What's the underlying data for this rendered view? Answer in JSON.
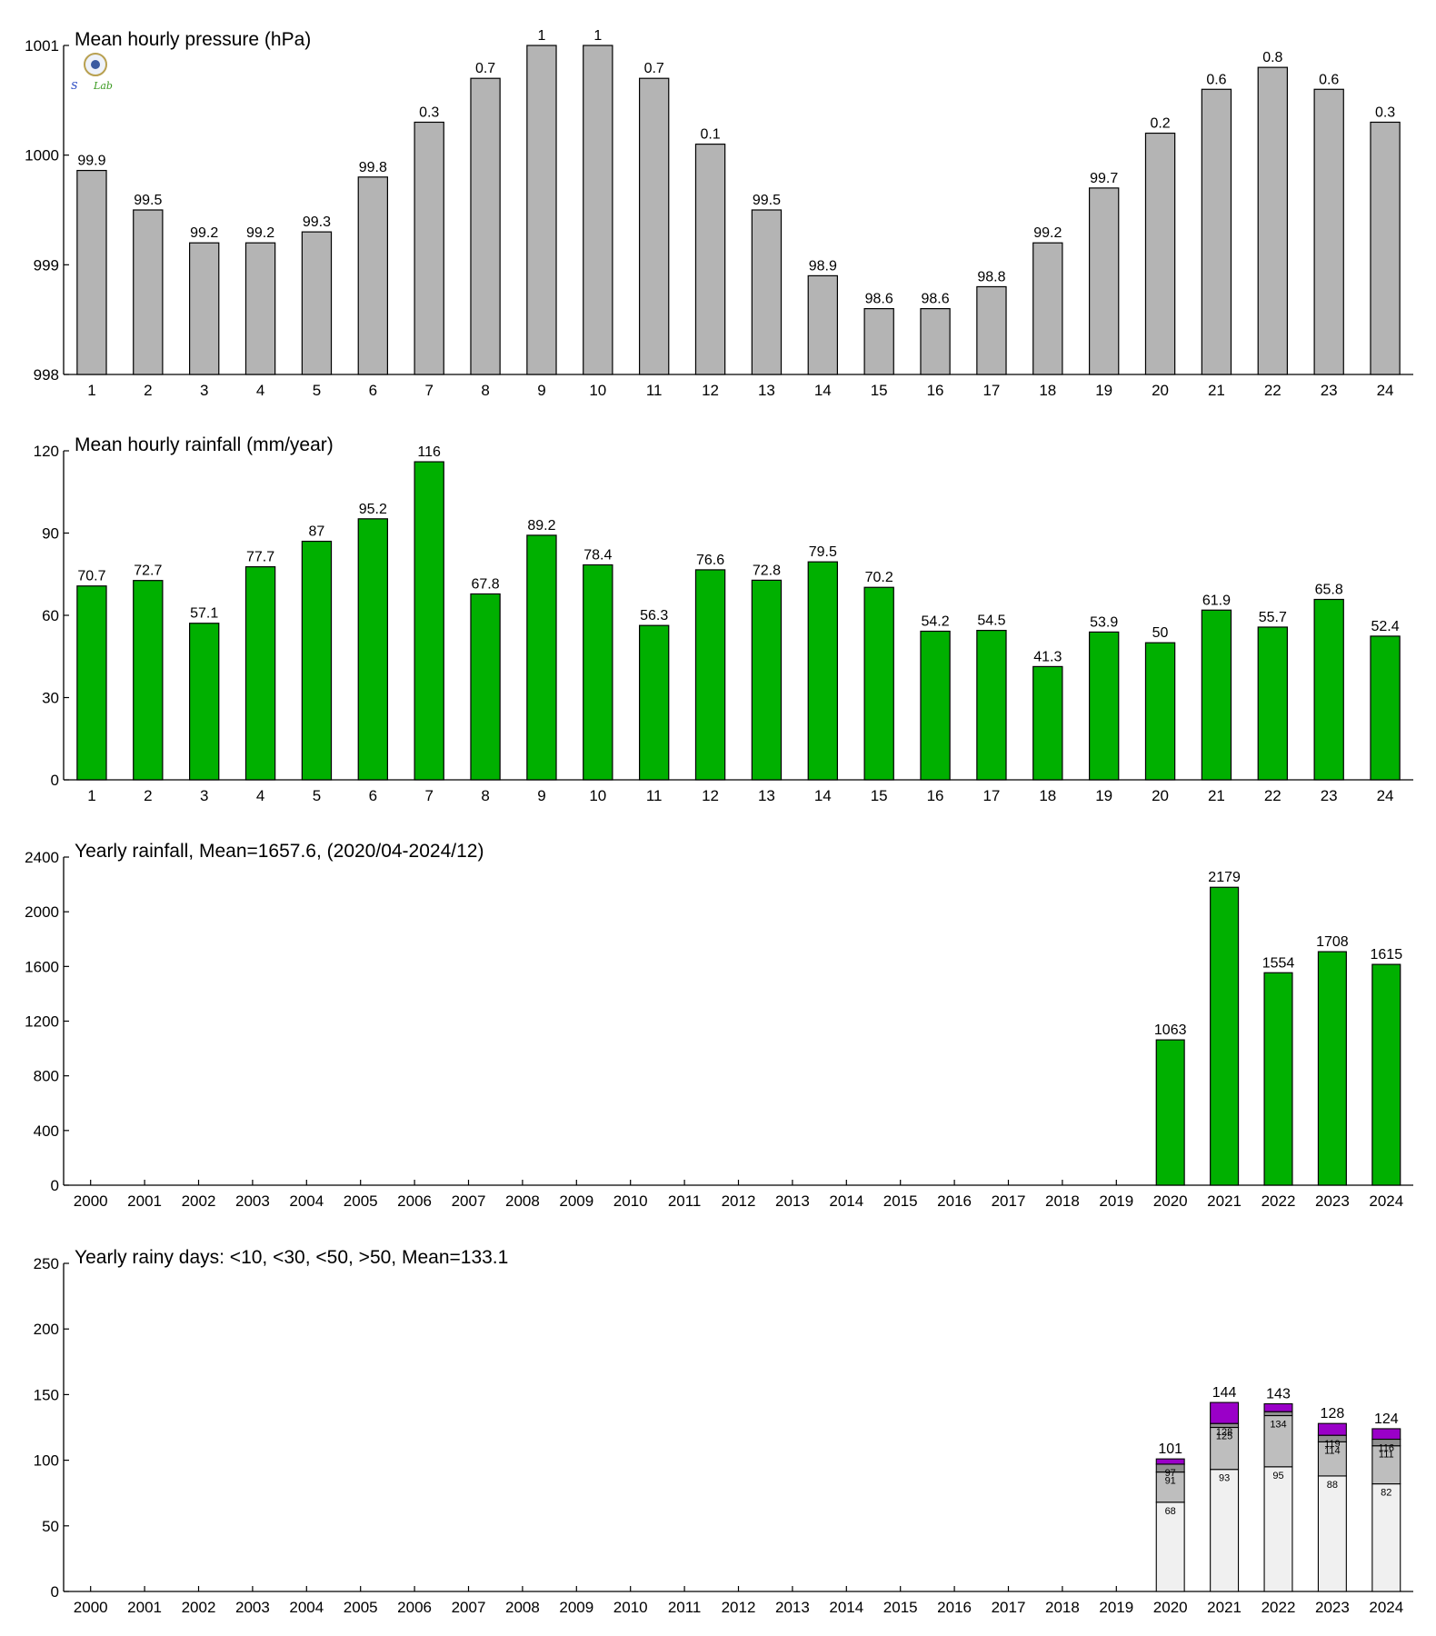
{
  "logo": {
    "text_a": "S",
    "text_b": "Lab"
  },
  "chart_data": [
    {
      "type": "bar",
      "title": "Mean hourly pressure (hPa)",
      "categories": [
        "1",
        "2",
        "3",
        "4",
        "5",
        "6",
        "7",
        "8",
        "9",
        "10",
        "11",
        "12",
        "13",
        "14",
        "15",
        "16",
        "17",
        "18",
        "19",
        "20",
        "21",
        "22",
        "23",
        "24"
      ],
      "values": [
        999.86,
        999.5,
        999.2,
        999.2,
        999.3,
        999.8,
        1000.3,
        1000.7,
        1001.0,
        1001.0,
        1000.7,
        1000.1,
        999.5,
        998.9,
        998.6,
        998.6,
        998.8,
        999.2,
        999.7,
        1000.2,
        1000.6,
        1000.8,
        1000.6,
        1000.3
      ],
      "data_labels": [
        "99.9",
        "99.5",
        "99.2",
        "99.2",
        "99.3",
        "99.8",
        "0.3",
        "0.7",
        "1",
        "1",
        "0.7",
        "0.1",
        "99.5",
        "98.9",
        "98.6",
        "98.6",
        "98.8",
        "99.2",
        "99.7",
        "0.2",
        "0.6",
        "0.8",
        "0.6",
        "0.3"
      ],
      "ylim": [
        998,
        1001
      ],
      "yticks": [
        998,
        999,
        1000,
        1001
      ],
      "color": "#b4b4b4"
    },
    {
      "type": "bar",
      "title": "Mean hourly rainfall (mm/year)",
      "categories": [
        "1",
        "2",
        "3",
        "4",
        "5",
        "6",
        "7",
        "8",
        "9",
        "10",
        "11",
        "12",
        "13",
        "14",
        "15",
        "16",
        "17",
        "18",
        "19",
        "20",
        "21",
        "22",
        "23",
        "24"
      ],
      "values": [
        70.7,
        72.7,
        57.1,
        77.7,
        87,
        95.2,
        116,
        67.8,
        89.2,
        78.4,
        56.3,
        76.6,
        72.8,
        79.5,
        70.2,
        54.2,
        54.5,
        41.3,
        53.9,
        50,
        61.9,
        55.7,
        65.8,
        52.4
      ],
      "data_labels": [
        "70.7",
        "72.7",
        "57.1",
        "77.7",
        "87",
        "95.2",
        "116",
        "67.8",
        "89.2",
        "78.4",
        "56.3",
        "76.6",
        "72.8",
        "79.5",
        "70.2",
        "54.2",
        "54.5",
        "41.3",
        "53.9",
        "50",
        "61.9",
        "55.7",
        "65.8",
        "52.4"
      ],
      "ylim": [
        0,
        120
      ],
      "yticks": [
        0,
        30,
        60,
        90,
        120
      ],
      "color": "#00b000"
    },
    {
      "type": "bar",
      "title": "Yearly rainfall, Mean=1657.6, (2020/04-2024/12)",
      "categories": [
        "2000",
        "2001",
        "2002",
        "2003",
        "2004",
        "2005",
        "2006",
        "2007",
        "2008",
        "2009",
        "2010",
        "2011",
        "2012",
        "2013",
        "2014",
        "2015",
        "2016",
        "2017",
        "2018",
        "2019",
        "2020",
        "2021",
        "2022",
        "2023",
        "2024"
      ],
      "values": [
        null,
        null,
        null,
        null,
        null,
        null,
        null,
        null,
        null,
        null,
        null,
        null,
        null,
        null,
        null,
        null,
        null,
        null,
        null,
        null,
        1063,
        2179,
        1554,
        1708,
        1615
      ],
      "data_labels": [
        "",
        "",
        "",
        "",
        "",
        "",
        "",
        "",
        "",
        "",
        "",
        "",
        "",
        "",
        "",
        "",
        "",
        "",
        "",
        "",
        "1063",
        "2179",
        "1554",
        "1708",
        "1615"
      ],
      "ylim": [
        0,
        2400
      ],
      "yticks": [
        0,
        400,
        800,
        1200,
        1600,
        2000,
        2400
      ],
      "color": "#00b000"
    },
    {
      "type": "bar",
      "stacked": true,
      "title": "Yearly rainy days: <10, <30, <50, >50, Mean=133.1",
      "categories": [
        "2000",
        "2001",
        "2002",
        "2003",
        "2004",
        "2005",
        "2006",
        "2007",
        "2008",
        "2009",
        "2010",
        "2011",
        "2012",
        "2013",
        "2014",
        "2015",
        "2016",
        "2017",
        "2018",
        "2019",
        "2020",
        "2021",
        "2022",
        "2023",
        "2024"
      ],
      "cumulative": [
        {
          "x": "2020",
          "values": [
            68,
            91,
            97,
            101
          ],
          "labels": [
            "68",
            "91",
            "97",
            "101"
          ]
        },
        {
          "x": "2021",
          "values": [
            93,
            125,
            128,
            144
          ],
          "labels": [
            "93",
            "125",
            "128",
            "144"
          ]
        },
        {
          "x": "2022",
          "values": [
            95,
            134,
            137,
            143
          ],
          "labels": [
            "95",
            "134",
            "",
            "143"
          ]
        },
        {
          "x": "2023",
          "values": [
            88,
            114,
            119,
            128
          ],
          "labels": [
            "88",
            "114",
            "119",
            "128"
          ]
        },
        {
          "x": "2024",
          "values": [
            82,
            111,
            116,
            124
          ],
          "labels": [
            "82",
            "111",
            "116",
            "124"
          ]
        }
      ],
      "series_colors": [
        "#f0f0f0",
        "#bebebe",
        "#909090",
        "#9a00c8"
      ],
      "ylim": [
        0,
        250
      ],
      "yticks": [
        0,
        50,
        100,
        150,
        200,
        250
      ]
    }
  ]
}
